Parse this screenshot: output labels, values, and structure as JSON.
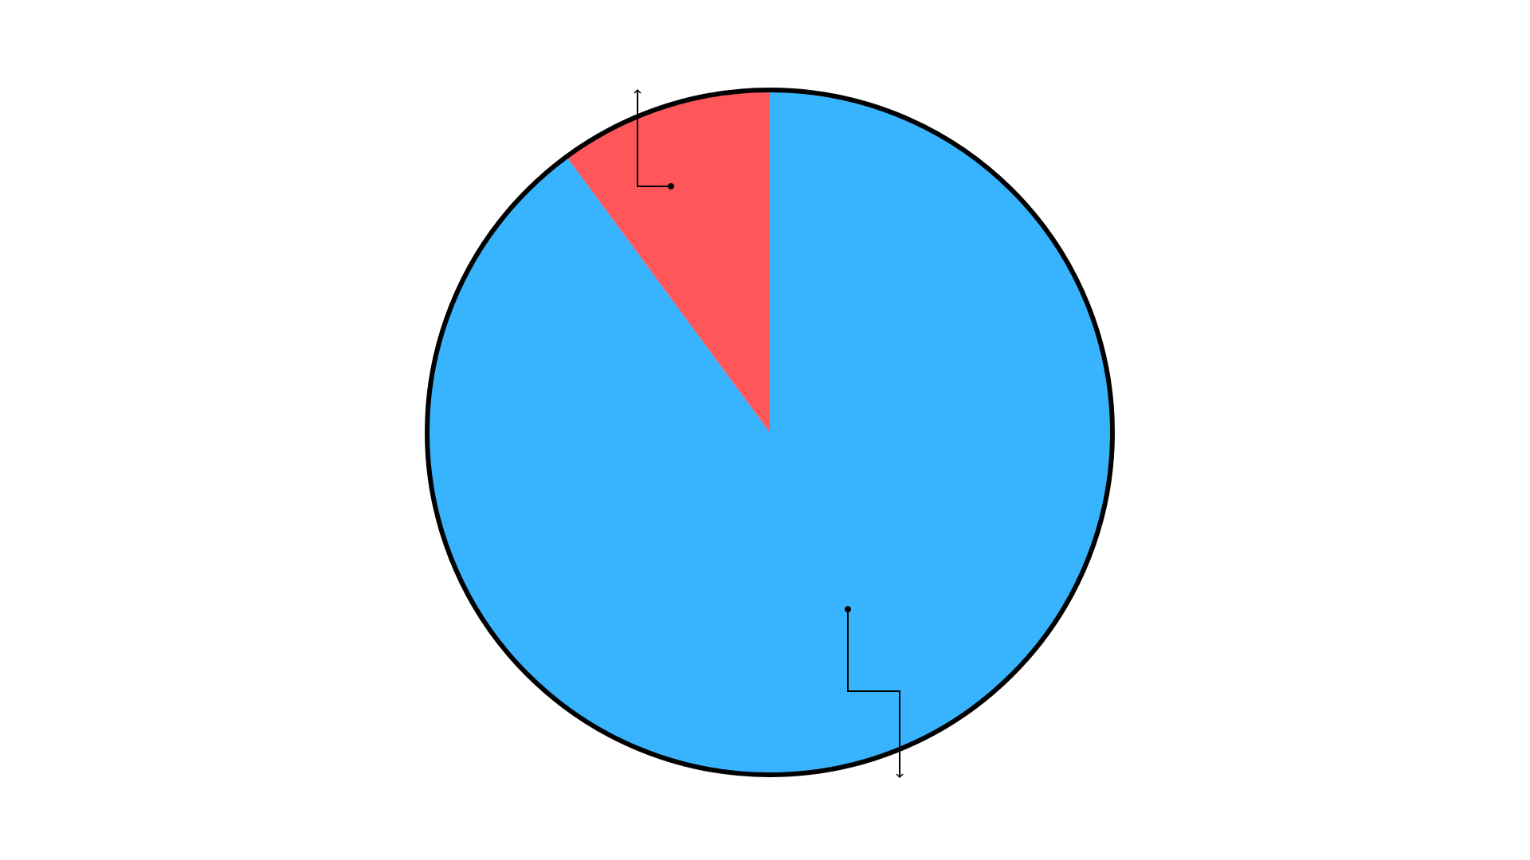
{
  "chart_data": {
    "type": "pie",
    "title": "",
    "slices": [
      {
        "value": 89.9,
        "color": "#38b4ff"
      },
      {
        "value": 10.1,
        "color": "#ff5759"
      }
    ],
    "start_angle": "12 o'clock",
    "direction": "clockwise",
    "outline_color": "#000000",
    "legend": "none"
  }
}
